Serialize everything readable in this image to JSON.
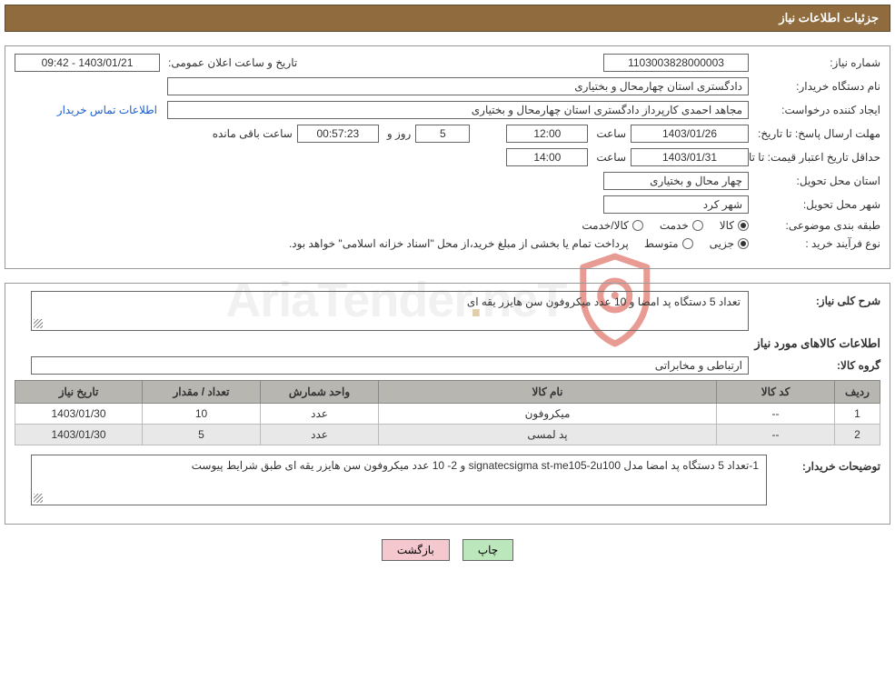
{
  "header": {
    "title": "جزئیات اطلاعات نیاز"
  },
  "fields": {
    "need_number_label": "شماره نیاز:",
    "need_number": "1103003828000003",
    "announce_label": "تاریخ و ساعت اعلان عمومی:",
    "announce_value": "1403/01/21 - 09:42",
    "buyer_org_label": "نام دستگاه خریدار:",
    "buyer_org": "دادگستری استان چهارمحال و بختیاری",
    "creator_label": "ایجاد کننده درخواست:",
    "creator": "مجاهد احمدی کارپرداز دادگستری استان چهارمحال و بختیاری",
    "contact_link": "اطلاعات تماس خریدار",
    "deadline_label": "مهلت ارسال پاسخ: تا تاریخ:",
    "deadline_date": "1403/01/26",
    "time_word": "ساعت",
    "deadline_time": "12:00",
    "days_label_and": "و",
    "days_remaining": "5",
    "days_word": "روز و",
    "countdown": "00:57:23",
    "remaining_word": "ساعت باقی مانده",
    "validity_label": "حداقل تاریخ اعتبار قیمت: تا تاریخ:",
    "validity_date": "1403/01/31",
    "validity_time": "14:00",
    "province_label": "استان محل تحویل:",
    "province": "چهار محال و بختیاری",
    "city_label": "شهر محل تحویل:",
    "city": "شهر کرد",
    "category_label": "طبقه بندی موضوعی:",
    "cat_goods": "کالا",
    "cat_service": "خدمت",
    "cat_goods_service": "کالا/خدمت",
    "purchase_type_label": "نوع فرآیند خرید :",
    "pt_minor": "جزیی",
    "pt_medium": "متوسط",
    "purchase_note": "پرداخت تمام یا بخشی از مبلغ خرید،از محل \"اسناد خزانه اسلامی\" خواهد بود."
  },
  "description": {
    "overall_label": "شرح کلی نیاز:",
    "overall_text": "تعداد 5 دستگاه پد امضا و 10 عدد میکروفون سن هایزر یقه ای",
    "goods_info_title": "اطلاعات کالاهای مورد نیاز",
    "group_label": "گروه کالا:",
    "group_value": "ارتباطی و مخابراتی",
    "buyer_notes_label": "توضیحات خریدار:",
    "buyer_notes": "1-تعداد 5 دستگاه پد امضا مدل signatecsigma   st-me105-2u100 و 2- 10 عدد میکروفون سن هایزر یقه ای طبق شرایط پیوست"
  },
  "table": {
    "headers": [
      "ردیف",
      "کد کالا",
      "نام کالا",
      "واحد شمارش",
      "تعداد / مقدار",
      "تاریخ نیاز"
    ],
    "rows": [
      [
        "1",
        "--",
        "میکروفون",
        "عدد",
        "10",
        "1403/01/30"
      ],
      [
        "2",
        "--",
        "پد لمسی",
        "عدد",
        "5",
        "1403/01/30"
      ]
    ],
    "col_widths": [
      "50px",
      "130px",
      "auto",
      "130px",
      "130px",
      "140px"
    ],
    "header_bg": "#b8b6b1",
    "alt_row_bg": "#e8e8e8"
  },
  "buttons": {
    "print": "چاپ",
    "back": "بازگشت"
  },
  "colors": {
    "header_bg": "#8f6b3e",
    "header_text": "#ffffff",
    "link": "#1a5fd0",
    "btn_print_bg": "#bce7bc",
    "btn_back_bg": "#f5c7cf",
    "watermark_gray": "#e6e6e6",
    "watermark_accent": "#c9a96a",
    "shield_stroke": "#d44a3a"
  },
  "watermark": {
    "text_left": "AriaTender",
    "dot": ".",
    "text_right": "neT"
  }
}
